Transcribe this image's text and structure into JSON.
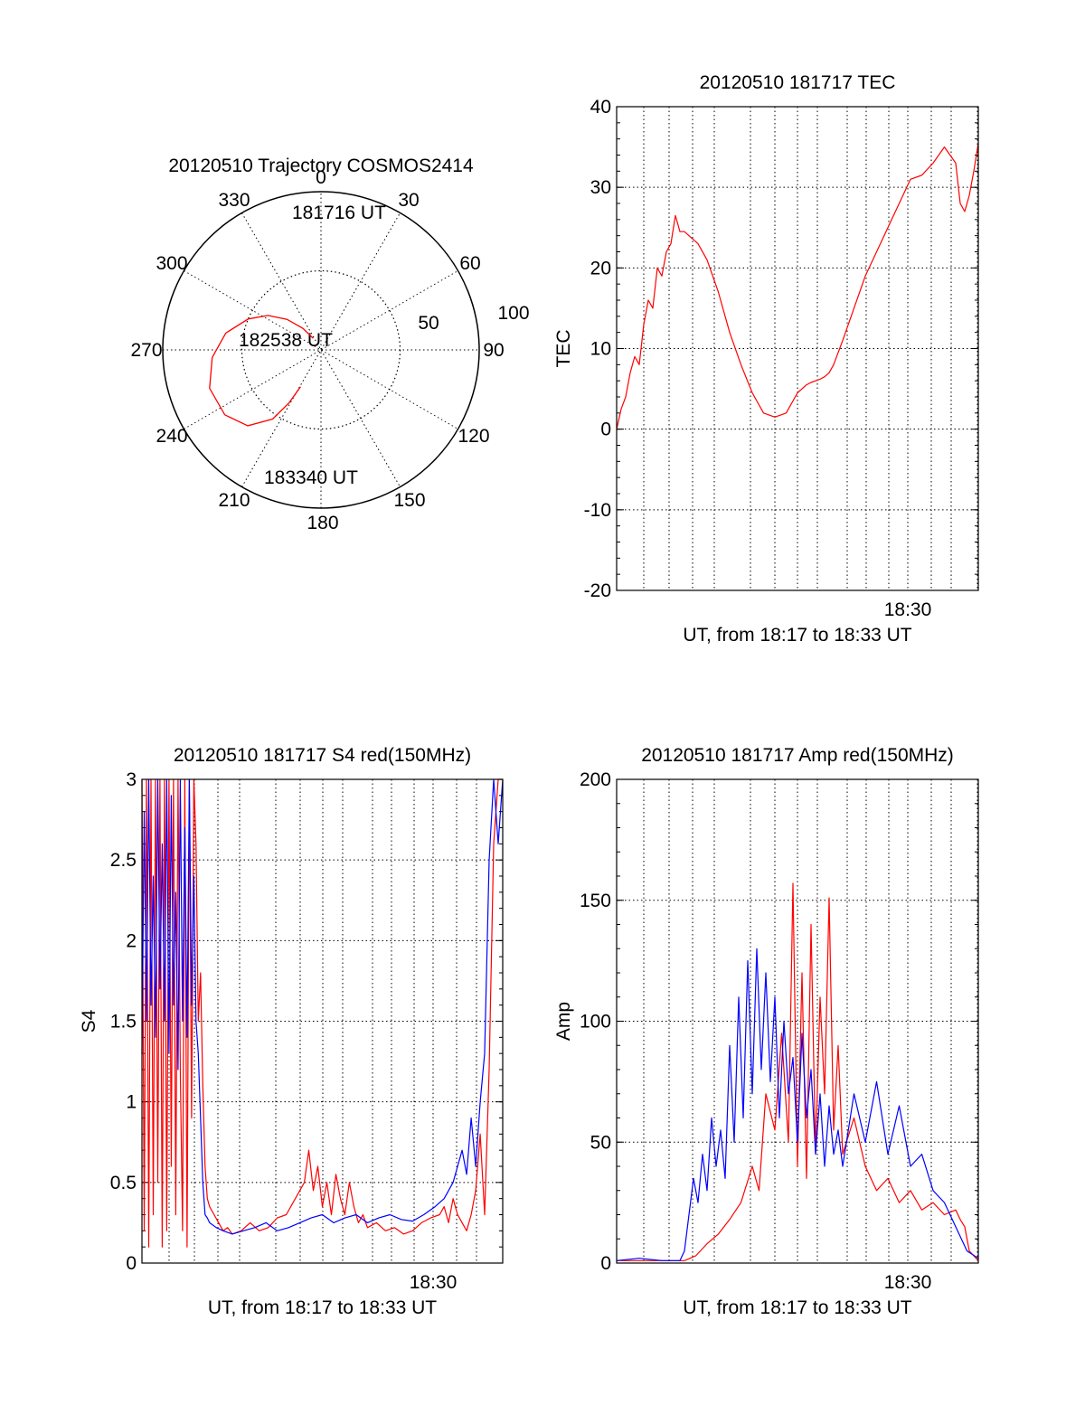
{
  "chart_data": [
    {
      "type": "polar",
      "title": "20120510 Trajectory COSMOS2414",
      "azimuth_labels": [
        "0",
        "30",
        "60",
        "90",
        "120",
        "150",
        "180",
        "210",
        "240",
        "270",
        "300",
        "330"
      ],
      "elevation_labels": [
        "50",
        "100"
      ],
      "annotations": [
        "181716 UT",
        "182538 UT",
        "183340 UT"
      ],
      "trajectory": {
        "color": "#ff0000",
        "points": [
          [
            326,
            82
          ],
          [
            320,
            74
          ],
          [
            312,
            64
          ],
          [
            303,
            54
          ],
          [
            293,
            45
          ],
          [
            280,
            35
          ],
          [
            266,
            28
          ],
          [
            251,
            23
          ],
          [
            236,
            24
          ],
          [
            224,
            30
          ],
          [
            215,
            42
          ],
          [
            211,
            55
          ],
          [
            209,
            66
          ]
        ]
      }
    },
    {
      "type": "line",
      "title": "20120510 181717 TEC",
      "xlabel": "UT, from 18:17 to 18:33 UT",
      "ylabel": "TEC",
      "xlim": [
        0,
        16
      ],
      "ylim": [
        -20,
        40
      ],
      "yticks": [
        "-20",
        "-10",
        "0",
        "10",
        "20",
        "30",
        "40"
      ],
      "xtick_label": "18:30",
      "series": [
        {
          "color": "#ff0000",
          "x": [
            0,
            0.2,
            0.4,
            0.6,
            0.8,
            1.0,
            1.2,
            1.4,
            1.6,
            1.8,
            2.0,
            2.2,
            2.4,
            2.6,
            2.8,
            3.0,
            3.2,
            3.4,
            3.6,
            4.0,
            4.5,
            5.0,
            5.5,
            6.0,
            6.5,
            7.0,
            7.5,
            8.0,
            8.2,
            8.4,
            8.6,
            8.8,
            9.0,
            9.2,
            9.4,
            9.6,
            10,
            10.5,
            11,
            11.5,
            12,
            12.5,
            13,
            13.5,
            14,
            14.5,
            15,
            15.2,
            15.4,
            15.6,
            15.8,
            16
          ],
          "y": [
            0,
            2.5,
            4,
            7,
            9,
            8,
            13,
            16,
            15,
            20,
            19,
            22,
            23,
            26.5,
            24.5,
            24.5,
            24,
            23.5,
            23,
            21,
            17,
            12,
            8,
            4.5,
            2,
            1.5,
            2,
            4.5,
            5,
            5.5,
            5.8,
            6,
            6.2,
            6.5,
            7,
            8,
            11,
            15,
            19,
            22,
            25,
            28,
            31,
            31.5,
            33,
            35,
            33,
            28,
            27,
            29,
            32,
            35.5
          ]
        }
      ]
    },
    {
      "type": "line",
      "title": "20120510 181717 S4 red(150MHz)",
      "xlabel": "UT, from 18:17 to 18:33 UT",
      "ylabel": "S4",
      "xlim": [
        0,
        16
      ],
      "ylim": [
        0,
        3
      ],
      "yticks": [
        "0",
        "0.5",
        "1",
        "1.5",
        "2",
        "2.5",
        "3"
      ],
      "xtick_label": "18:30",
      "series": [
        {
          "color": "#ff0000",
          "x": [
            0,
            0.1,
            0.2,
            0.3,
            0.4,
            0.5,
            0.6,
            0.7,
            0.8,
            0.9,
            1.0,
            1.1,
            1.2,
            1.3,
            1.4,
            1.5,
            1.6,
            1.7,
            1.8,
            1.9,
            2.0,
            2.1,
            2.2,
            2.3,
            2.4,
            2.5,
            2.6,
            2.7,
            2.8,
            2.9,
            3.0,
            3.2,
            3.4,
            3.6,
            3.8,
            4.0,
            4.4,
            4.8,
            5.2,
            5.6,
            6.0,
            6.4,
            6.8,
            7.2,
            7.4,
            7.6,
            7.8,
            8.0,
            8.2,
            8.4,
            8.6,
            8.8,
            9.0,
            9.2,
            9.4,
            9.6,
            9.8,
            10.0,
            10.4,
            10.8,
            11.2,
            11.6,
            12.0,
            12.4,
            12.8,
            13.2,
            13.4,
            13.6,
            13.8,
            14.0,
            14.2,
            14.4,
            14.6,
            14.8,
            15.0,
            15.2,
            15.4,
            15.6,
            15.8,
            16
          ],
          "y": [
            3,
            0.2,
            3,
            0.1,
            3,
            0.3,
            3,
            0.5,
            3,
            0.1,
            3,
            0.2,
            3,
            0.6,
            3,
            0.3,
            3,
            1.2,
            0.2,
            3,
            0.1,
            3,
            0.9,
            3,
            2.6,
            1.5,
            1.8,
            1.1,
            0.6,
            0.4,
            0.35,
            0.3,
            0.25,
            0.2,
            0.22,
            0.18,
            0.2,
            0.25,
            0.2,
            0.22,
            0.28,
            0.3,
            0.4,
            0.5,
            0.7,
            0.45,
            0.6,
            0.35,
            0.5,
            0.3,
            0.55,
            0.4,
            0.3,
            0.5,
            0.35,
            0.25,
            0.3,
            0.22,
            0.25,
            0.2,
            0.22,
            0.18,
            0.2,
            0.25,
            0.28,
            0.3,
            0.35,
            0.25,
            0.4,
            0.3,
            0.25,
            0.2,
            0.3,
            0.45,
            0.8,
            0.3,
            1.2,
            2.6,
            3,
            3
          ]
        },
        {
          "color": "#0000ff",
          "x": [
            0,
            0.1,
            0.2,
            0.3,
            0.4,
            0.5,
            0.6,
            0.7,
            0.8,
            0.9,
            1.0,
            1.1,
            1.2,
            1.3,
            1.4,
            1.5,
            1.6,
            1.7,
            1.8,
            1.9,
            2.0,
            2.1,
            2.2,
            2.3,
            2.4,
            2.5,
            2.6,
            2.7,
            2.8,
            2.9,
            3.0,
            3.3,
            3.6,
            4.0,
            4.5,
            5.0,
            5.5,
            6.0,
            6.5,
            7.0,
            7.5,
            8.0,
            8.5,
            9.0,
            9.5,
            10.0,
            10.5,
            11.0,
            11.5,
            12.0,
            12.5,
            13.0,
            13.4,
            13.8,
            14.0,
            14.2,
            14.4,
            14.6,
            14.8,
            15.0,
            15.2,
            15.4,
            15.6,
            15.8,
            16
          ],
          "y": [
            1.3,
            2.8,
            1.5,
            3,
            1.6,
            2.4,
            1.4,
            3,
            1.7,
            2.6,
            1.5,
            3,
            1.3,
            2.9,
            1.6,
            2.3,
            1.2,
            3,
            1.5,
            2.7,
            1.4,
            3,
            1.6,
            2.4,
            1.5,
            1.3,
            0.9,
            0.5,
            0.3,
            0.28,
            0.25,
            0.22,
            0.2,
            0.18,
            0.2,
            0.22,
            0.25,
            0.2,
            0.22,
            0.25,
            0.28,
            0.3,
            0.25,
            0.28,
            0.3,
            0.25,
            0.28,
            0.3,
            0.27,
            0.26,
            0.3,
            0.35,
            0.4,
            0.5,
            0.6,
            0.7,
            0.55,
            0.9,
            0.6,
            1.0,
            1.3,
            2.5,
            3,
            2.6,
            3
          ]
        }
      ]
    },
    {
      "type": "line",
      "title": "20120510 181717 Amp red(150MHz)",
      "xlabel": "UT, from 18:17 to 18:33 UT",
      "ylabel": "Amp",
      "xlim": [
        0,
        16
      ],
      "ylim": [
        0,
        200
      ],
      "yticks": [
        "0",
        "50",
        "100",
        "150",
        "200"
      ],
      "xtick_label": "18:30",
      "series": [
        {
          "color": "#ff0000",
          "x": [
            0,
            2,
            3,
            3.5,
            4,
            4.5,
            5,
            5.5,
            6,
            6.3,
            6.6,
            7,
            7.3,
            7.6,
            7.8,
            8.0,
            8.2,
            8.4,
            8.6,
            8.8,
            9.0,
            9.2,
            9.4,
            9.6,
            9.8,
            10,
            10.5,
            11,
            11.5,
            12,
            12.5,
            13,
            13.5,
            14,
            14.5,
            15,
            15.2,
            15.4,
            15.6,
            16
          ],
          "y": [
            1,
            1,
            1,
            3,
            8,
            12,
            18,
            25,
            40,
            30,
            70,
            55,
            95,
            50,
            157,
            40,
            120,
            35,
            140,
            45,
            110,
            70,
            151,
            55,
            90,
            45,
            60,
            40,
            30,
            35,
            25,
            30,
            22,
            25,
            20,
            22,
            18,
            15,
            5,
            1
          ]
        },
        {
          "color": "#0000ff",
          "x": [
            0,
            1,
            2,
            2.8,
            3.0,
            3.2,
            3.4,
            3.6,
            3.8,
            4.0,
            4.2,
            4.4,
            4.6,
            4.8,
            5.0,
            5.2,
            5.4,
            5.6,
            5.8,
            6.0,
            6.2,
            6.4,
            6.6,
            6.8,
            7.0,
            7.2,
            7.4,
            7.6,
            7.8,
            8.0,
            8.2,
            8.4,
            8.6,
            8.8,
            9.0,
            9.2,
            9.4,
            9.6,
            9.8,
            10,
            10.5,
            11,
            11.5,
            12,
            12.5,
            13,
            13.5,
            14,
            14.5,
            15,
            15.5,
            16
          ],
          "y": [
            1,
            2,
            1,
            1,
            5,
            20,
            35,
            25,
            45,
            30,
            60,
            40,
            55,
            35,
            90,
            50,
            110,
            60,
            125,
            70,
            130,
            80,
            120,
            75,
            110,
            60,
            100,
            70,
            85,
            50,
            95,
            60,
            80,
            45,
            70,
            40,
            65,
            45,
            55,
            40,
            70,
            50,
            75,
            45,
            65,
            40,
            45,
            30,
            25,
            15,
            5,
            2
          ]
        }
      ]
    }
  ]
}
